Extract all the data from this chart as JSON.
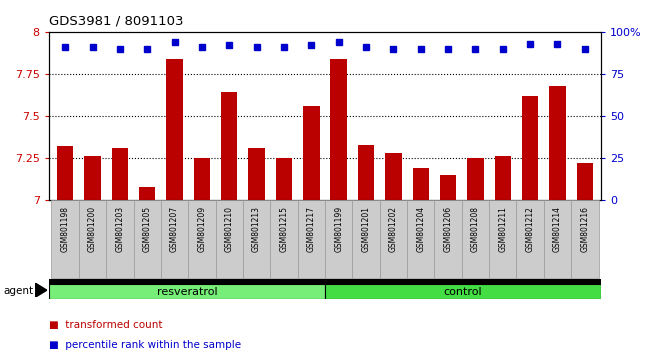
{
  "title": "GDS3981 / 8091103",
  "samples": [
    "GSM801198",
    "GSM801200",
    "GSM801203",
    "GSM801205",
    "GSM801207",
    "GSM801209",
    "GSM801210",
    "GSM801213",
    "GSM801215",
    "GSM801217",
    "GSM801199",
    "GSM801201",
    "GSM801202",
    "GSM801204",
    "GSM801206",
    "GSM801208",
    "GSM801211",
    "GSM801212",
    "GSM801214",
    "GSM801216"
  ],
  "red_values": [
    7.32,
    7.26,
    7.31,
    7.08,
    7.84,
    7.25,
    7.64,
    7.31,
    7.25,
    7.56,
    7.84,
    7.33,
    7.28,
    7.19,
    7.15,
    7.25,
    7.26,
    7.62,
    7.68,
    7.22
  ],
  "blue_values": [
    91,
    91,
    90,
    90,
    94,
    91,
    92,
    91,
    91,
    92,
    94,
    91,
    90,
    90,
    90,
    90,
    90,
    93,
    93,
    90
  ],
  "n_resveratrol": 10,
  "n_control": 10,
  "ylim_left": [
    7.0,
    8.0
  ],
  "ylim_right": [
    0,
    100
  ],
  "yticks_left": [
    7.0,
    7.25,
    7.5,
    7.75,
    8.0
  ],
  "ytick_labels_left": [
    "7",
    "7.25",
    "7.5",
    "7.75",
    "8"
  ],
  "yticks_right": [
    0,
    25,
    50,
    75,
    100
  ],
  "ytick_labels_right": [
    "0",
    "25",
    "50",
    "75",
    "100%"
  ],
  "bar_color": "#bb0000",
  "dot_color": "#0000cc",
  "resveratrol_color": "#77ee77",
  "control_color": "#44dd44",
  "title_color": "#000000",
  "axis_color": "#cc0000",
  "right_axis_color": "#0000cc",
  "legend_red_label": "transformed count",
  "legend_blue_label": "percentile rank within the sample",
  "agent_label": "agent",
  "resveratrol_label": "resveratrol",
  "control_label": "control",
  "background_color": "#ffffff",
  "ticklabel_bg": "#cccccc",
  "ticklabel_border": "#999999"
}
